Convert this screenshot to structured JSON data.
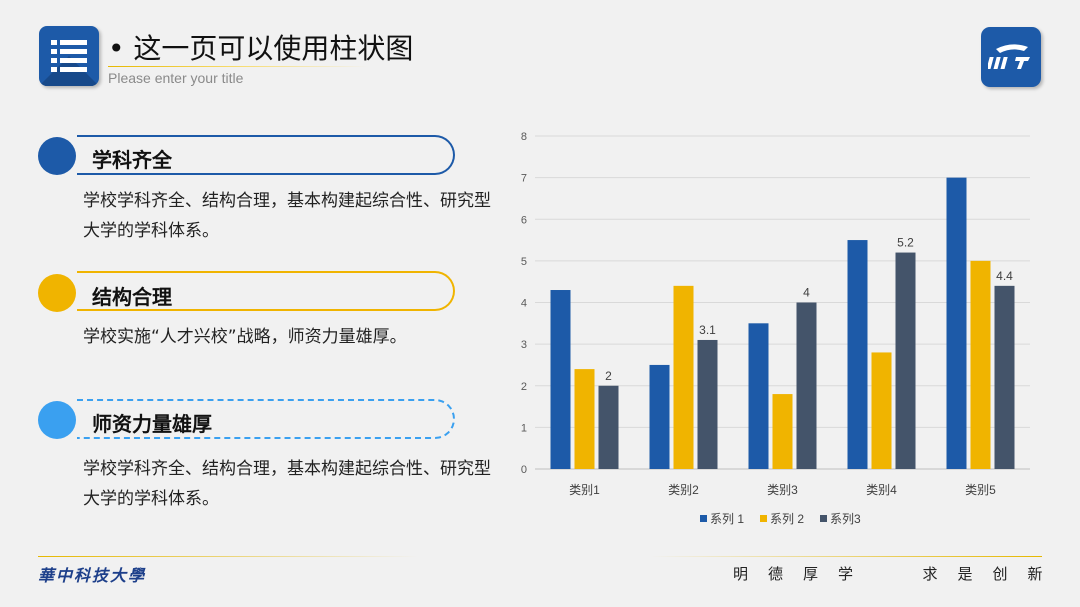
{
  "header": {
    "title": "• 这一页可以使用柱状图",
    "subtitle": "Please enter your  title"
  },
  "items": [
    {
      "title": "学科齐全",
      "desc": "学校学科齐全、结构合理，基本构建起综合性、研究型大学的学科体系。",
      "color": "#1d5aa8"
    },
    {
      "title": "结构合理",
      "desc": "学校实施“人才兴校”战略，师资力量雄厚。",
      "color": "#f0b400"
    },
    {
      "title": "师资力量雄厚",
      "desc": "学校学科齐全、结构合理，基本构建起综合性、研究型大学的学科体系。",
      "color": "#3aa0f0"
    }
  ],
  "chart_data": {
    "type": "bar",
    "categories": [
      "类别1",
      "类别2",
      "类别3",
      "类别4",
      "类别5"
    ],
    "series": [
      {
        "name": "系列 1",
        "values": [
          4.3,
          2.5,
          3.5,
          5.5,
          7.0
        ],
        "color": "#1d5aa8"
      },
      {
        "name": "系列 2",
        "values": [
          2.4,
          4.4,
          1.8,
          2.8,
          5.0
        ],
        "color": "#f0b400"
      },
      {
        "name": "系列3",
        "values": [
          2,
          3.1,
          4,
          5.2,
          4.4
        ],
        "color": "#44546a"
      }
    ],
    "data_labels": [
      {
        "series": 2,
        "category": 0,
        "text": "2"
      },
      {
        "series": 2,
        "category": 1,
        "text": "3.1"
      },
      {
        "series": 2,
        "category": 2,
        "text": "4"
      },
      {
        "series": 2,
        "category": 3,
        "text": "5.2"
      },
      {
        "series": 2,
        "category": 4,
        "text": "4.4"
      }
    ],
    "yticks": [
      "0",
      "1",
      "2",
      "3",
      "4",
      "5",
      "6",
      "7",
      "8"
    ],
    "ylim": [
      0,
      8
    ],
    "grid": true,
    "legend": "bottom"
  },
  "footer": {
    "school": "華中科技大學",
    "motto": "明德厚学  求是创新"
  }
}
